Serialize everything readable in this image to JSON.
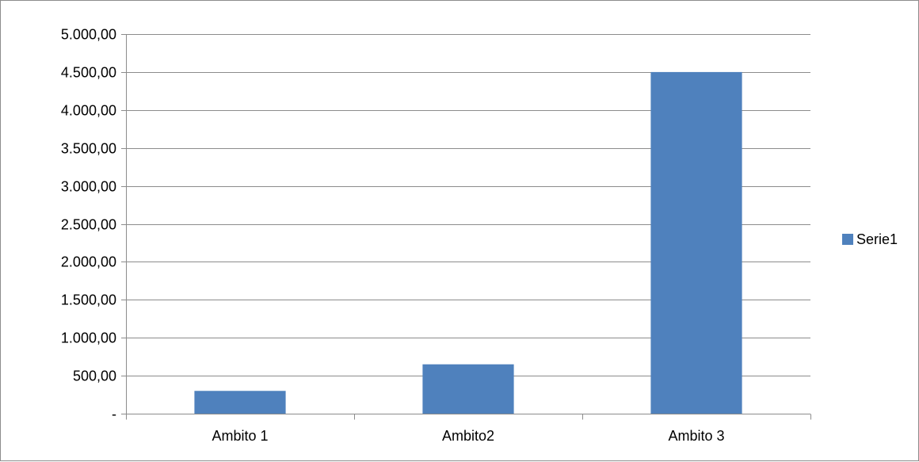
{
  "chart_data": {
    "type": "bar",
    "categories": [
      "Ambito 1",
      "Ambito2",
      "Ambito 3"
    ],
    "series": [
      {
        "name": "Serie1",
        "values": [
          300,
          650,
          4500
        ],
        "color": "#4f81bd"
      }
    ],
    "title": "",
    "xlabel": "",
    "ylabel": "",
    "ylim": [
      0,
      5000
    ],
    "yticks": [
      0,
      500,
      1000,
      1500,
      2000,
      2500,
      3000,
      3500,
      4000,
      4500,
      5000
    ],
    "ytick_labels": [
      "-",
      "500,00",
      "1.000,00",
      "1.500,00",
      "2.000,00",
      "2.500,00",
      "3.000,00",
      "3.500,00",
      "4.000,00",
      "4.500,00",
      "5.000,00"
    ],
    "grid": true,
    "legend_position": "right"
  }
}
